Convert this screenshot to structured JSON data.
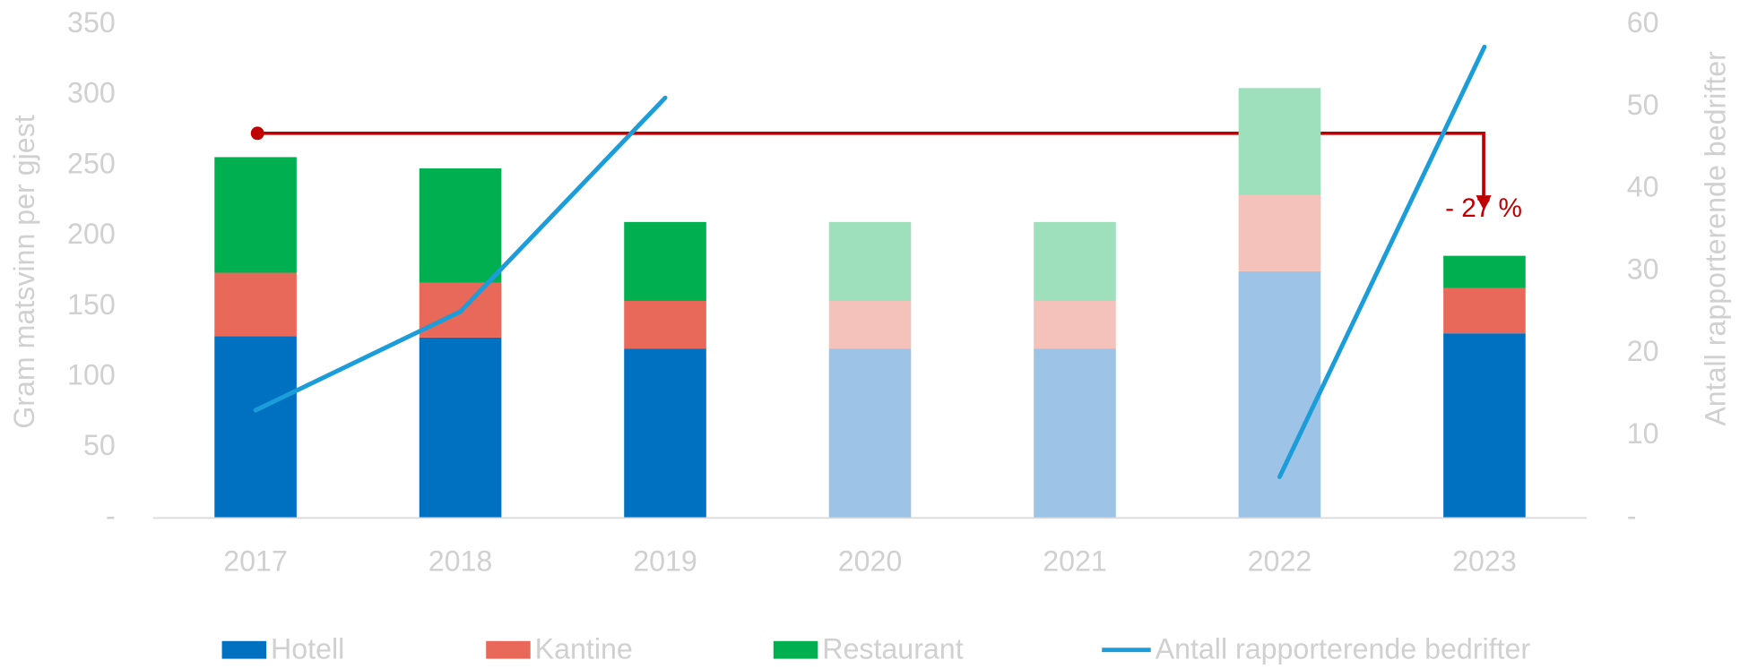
{
  "chart_data": {
    "type": "bar",
    "categories": [
      "2017",
      "2018",
      "2019",
      "2020",
      "2021",
      "2022",
      "2023"
    ],
    "series": [
      {
        "name": "Hotell",
        "color": "#0070c0",
        "colors": [
          "#0070c0",
          "#0070c0",
          "#0070c0",
          "#9dc3e6",
          "#9dc3e6",
          "#9dc3e6",
          "#0070c0"
        ],
        "values": [
          129,
          128,
          120,
          120,
          120,
          175,
          131
        ]
      },
      {
        "name": "Kantine",
        "color": "#e8685a",
        "colors": [
          "#e8685a",
          "#e8685a",
          "#e8685a",
          "#f4c2ba",
          "#f4c2ba",
          "#f4c2ba",
          "#e8685a"
        ],
        "values": [
          45,
          39,
          34,
          34,
          34,
          54,
          32
        ]
      },
      {
        "name": "Restaurant",
        "color": "#00b050",
        "colors": [
          "#00b050",
          "#00b050",
          "#00b050",
          "#9ee0bb",
          "#9ee0bb",
          "#9ee0bb",
          "#00b050"
        ],
        "values": [
          82,
          81,
          56,
          56,
          56,
          76,
          23
        ]
      },
      {
        "name": "Antall rapporterende bedrifter",
        "type": "line",
        "axis": "y2",
        "color": "#1b9dd9",
        "values": [
          13.1,
          25.1,
          51.1,
          null,
          null,
          5,
          57.3
        ]
      }
    ],
    "ylabel": "Gram matsvinn per gjest",
    "y2label": "Antall rapporterende bedrifter",
    "ylim": [
      0,
      350
    ],
    "yticks": [
      {
        "value": 0,
        "label": "-"
      },
      50,
      100,
      150,
      200,
      250,
      300,
      350
    ],
    "y2lim": [
      0,
      60
    ],
    "y2ticks": [
      {
        "value": 0,
        "label": "-"
      },
      10,
      20,
      30,
      40,
      50,
      60
    ],
    "annotation": "- 27 %"
  }
}
